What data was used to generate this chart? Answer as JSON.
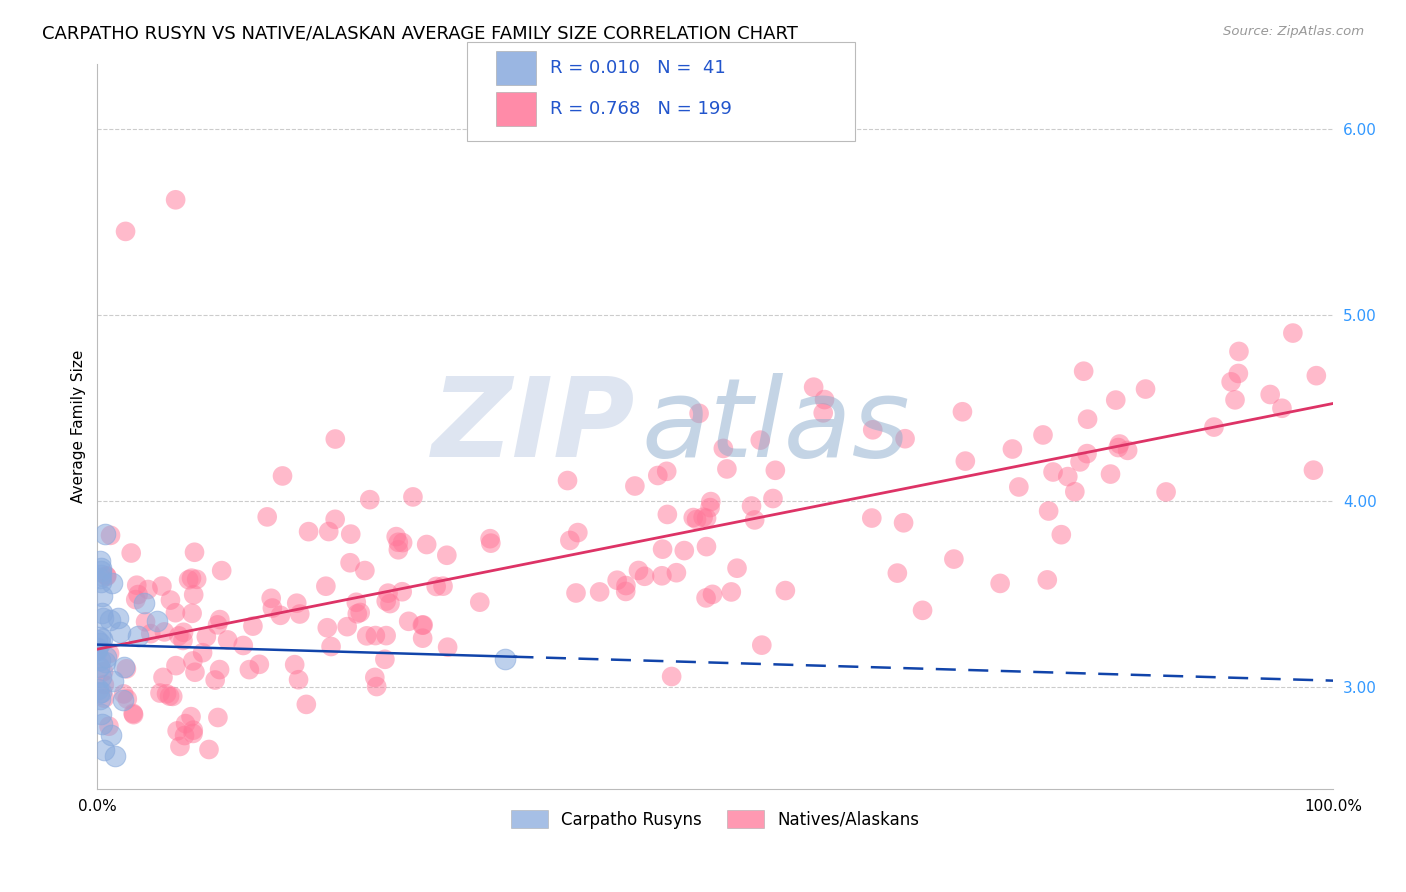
{
  "title": "CARPATHO RUSYN VS NATIVE/ALASKAN AVERAGE FAMILY SIZE CORRELATION CHART",
  "source": "Source: ZipAtlas.com",
  "ylabel": "Average Family Size",
  "watermark": "ZIPAtlas",
  "xlim": [
    0,
    1
  ],
  "ylim": [
    2.45,
    6.35
  ],
  "yticks": [
    3.0,
    4.0,
    5.0,
    6.0
  ],
  "yticklabels": [
    "3.00",
    "4.00",
    "5.00",
    "6.00"
  ],
  "xticklabels": [
    "0.0%",
    "100.0%"
  ],
  "blue_R": 0.01,
  "blue_N": 41,
  "pink_R": 0.768,
  "pink_N": 199,
  "blue_color": "#88AADD",
  "pink_color": "#FF7799",
  "blue_line_color": "#1144AA",
  "pink_line_color": "#DD3366",
  "legend_blue_label": "Carpatho Rusyns",
  "legend_pink_label": "Natives/Alaskans",
  "title_fontsize": 13,
  "axis_label_fontsize": 11,
  "tick_fontsize": 11,
  "background_color": "#FFFFFF",
  "grid_color": "#CCCCCC"
}
